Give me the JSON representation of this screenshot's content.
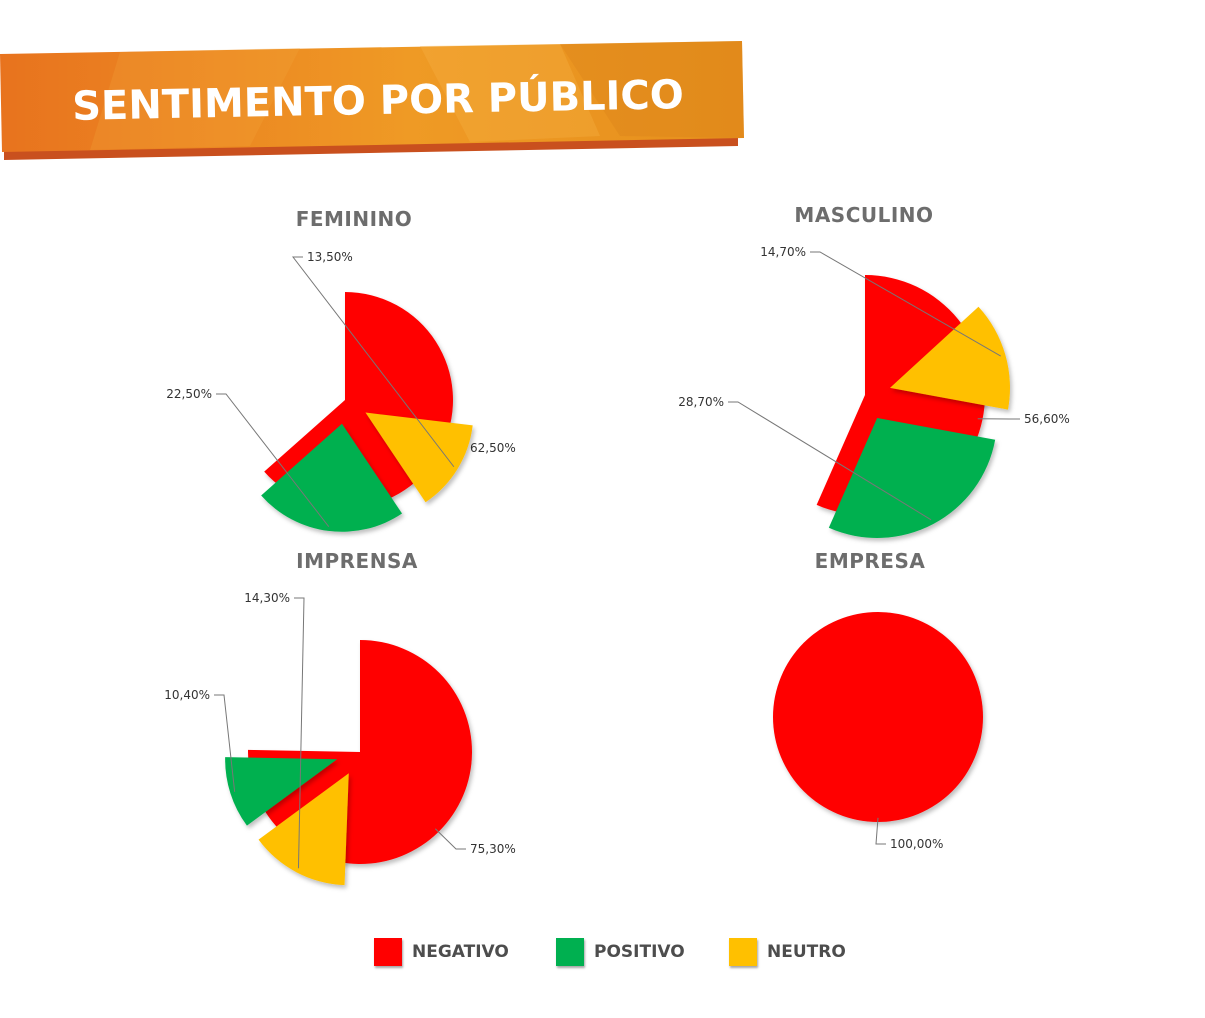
{
  "header": {
    "title": "SENTIMENTO POR PÚBLICO"
  },
  "colors": {
    "negativo": "#ff0000",
    "positivo": "#00b050",
    "neutro": "#ffc000",
    "banner_primary": "#ec8a1c",
    "banner_shadow": "#c9501e"
  },
  "legend": [
    {
      "key": "negativo",
      "label": "NEGATIVO"
    },
    {
      "key": "positivo",
      "label": "POSITIVO"
    },
    {
      "key": "neutro",
      "label": "NEUTRO"
    }
  ],
  "chart_data": [
    {
      "type": "pie",
      "title": "FEMININO",
      "slices": [
        {
          "category": "negativo",
          "value": 62.5,
          "label": "62,50%"
        },
        {
          "category": "positivo",
          "value": 22.5,
          "label": "22,50%"
        },
        {
          "category": "neutro",
          "value": 13.5,
          "label": "13,50%"
        }
      ]
    },
    {
      "type": "pie",
      "title": "MASCULINO",
      "slices": [
        {
          "category": "negativo",
          "value": 56.6,
          "label": "56,60%"
        },
        {
          "category": "positivo",
          "value": 28.7,
          "label": "28,70%"
        },
        {
          "category": "neutro",
          "value": 14.7,
          "label": "14,70%"
        }
      ]
    },
    {
      "type": "pie",
      "title": "IMPRENSA",
      "slices": [
        {
          "category": "negativo",
          "value": 75.3,
          "label": "75,30%"
        },
        {
          "category": "positivo",
          "value": 10.4,
          "label": "10,40%"
        },
        {
          "category": "neutro",
          "value": 14.3,
          "label": "14,30%"
        }
      ]
    },
    {
      "type": "pie",
      "title": "EMPRESA",
      "slices": [
        {
          "category": "negativo",
          "value": 100,
          "label": "100,00%"
        }
      ]
    }
  ]
}
